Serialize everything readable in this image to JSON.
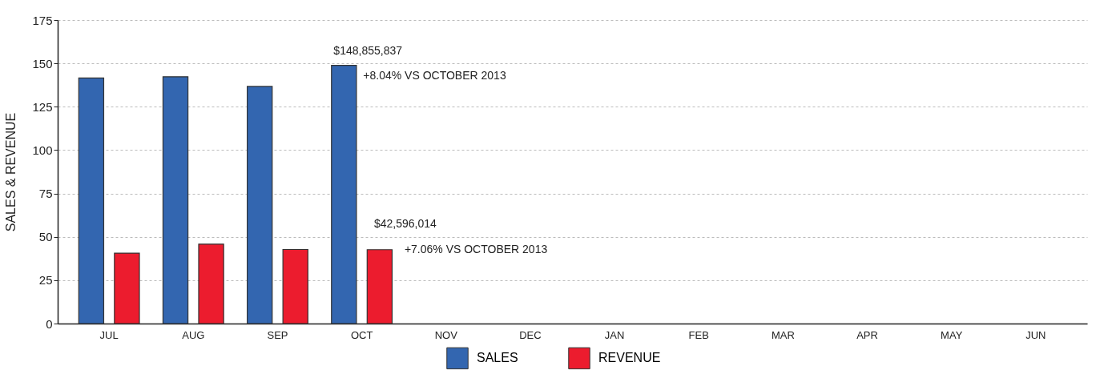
{
  "chart_data": {
    "type": "bar",
    "ylabel": "SALES & REVENUE",
    "categories": [
      "JUL",
      "AUG",
      "SEP",
      "OCT",
      "NOV",
      "DEC",
      "JAN",
      "FEB",
      "MAR",
      "APR",
      "MAY",
      "JUN"
    ],
    "series": [
      {
        "name": "SALES",
        "color": "#3366b0",
        "values": [
          141.6,
          142.3,
          136.7,
          148.9,
          null,
          null,
          null,
          null,
          null,
          null,
          null,
          null
        ]
      },
      {
        "name": "REVENUE",
        "color": "#ec1c2e",
        "values": [
          40.6,
          45.8,
          42.7,
          42.6,
          null,
          null,
          null,
          null,
          null,
          null,
          null,
          null
        ]
      }
    ],
    "ylim": [
      0,
      175
    ],
    "yticks": [
      0,
      25,
      50,
      75,
      100,
      125,
      150,
      175
    ],
    "grid": "y",
    "legend": "bottom",
    "annotations": [
      "$148,855,837",
      "+8.04% VS OCTOBER 2013",
      "$42,596,014",
      "+7.06% VS OCTOBER 2013"
    ]
  }
}
